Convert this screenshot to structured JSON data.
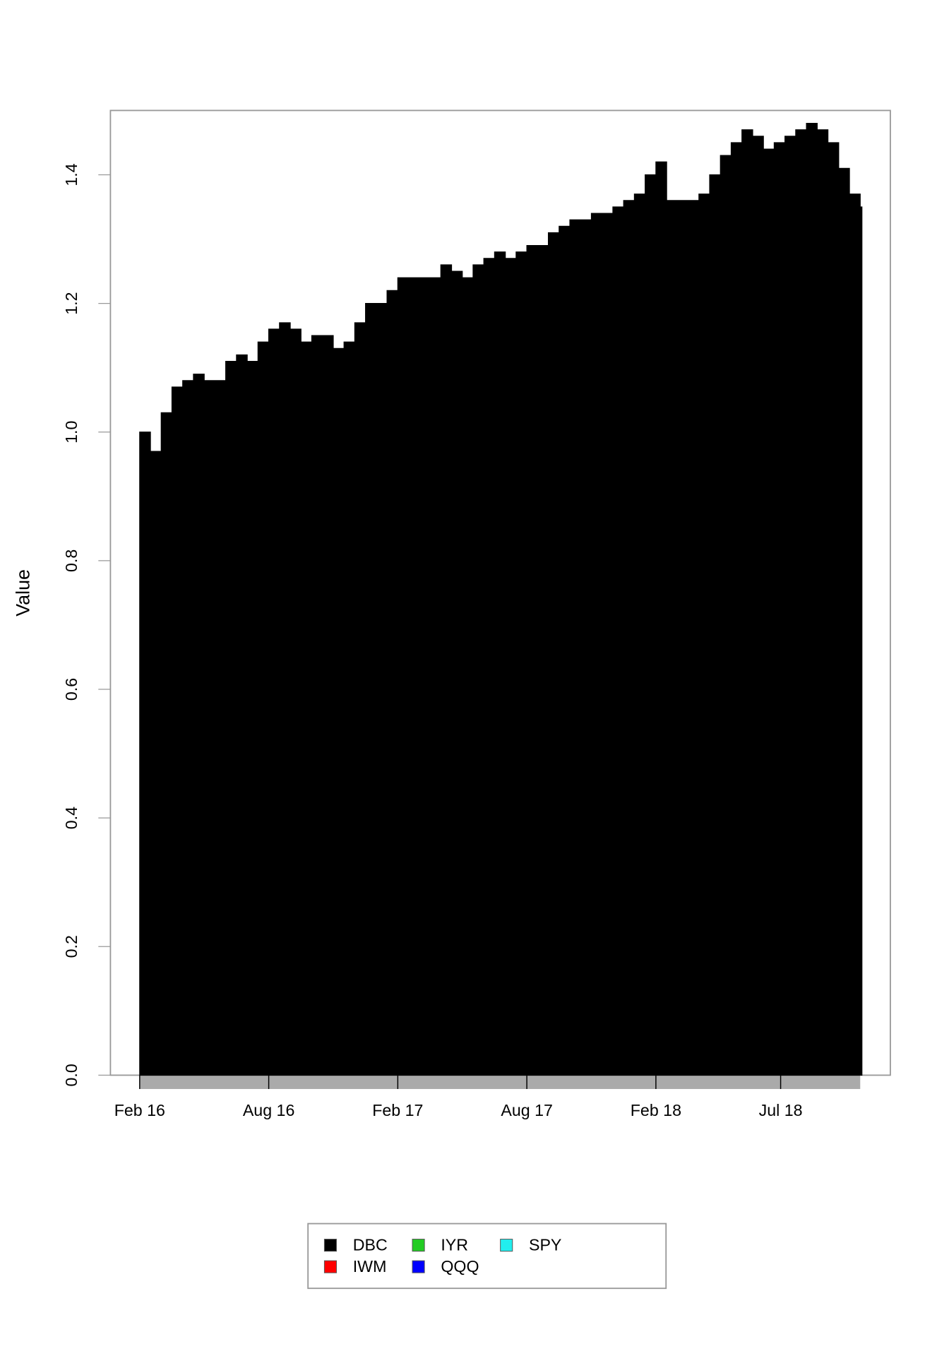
{
  "chart_data": {
    "type": "area",
    "y_label": "Value",
    "x": [
      0,
      0.5,
      1,
      1.5,
      2,
      2.5,
      3,
      3.5,
      4,
      4.5,
      5,
      5.5,
      6,
      6.5,
      7,
      7.5,
      8,
      8.5,
      9,
      9.5,
      10,
      10.5,
      11,
      11.5,
      12,
      12.5,
      13,
      13.5,
      14,
      14.5,
      15,
      15.5,
      16,
      16.5,
      17,
      17.5,
      18,
      18.5,
      19,
      19.5,
      20,
      20.5,
      21,
      21.5,
      22,
      22.5,
      23,
      23.5,
      24,
      24.5,
      25,
      25.5,
      26,
      26.5,
      27,
      27.5,
      28,
      28.5,
      29,
      29.5,
      30,
      30.5,
      31,
      31.5,
      32,
      32.5,
      33,
      33.5
    ],
    "series": [
      {
        "name": "DBC",
        "color": "#000000",
        "values": [
          1.0,
          0.97,
          1.03,
          1.07,
          1.08,
          1.09,
          1.08,
          1.08,
          1.11,
          1.12,
          1.11,
          1.14,
          1.16,
          1.17,
          1.16,
          1.14,
          1.15,
          1.15,
          1.13,
          1.14,
          1.17,
          1.2,
          1.2,
          1.22,
          1.24,
          1.24,
          1.24,
          1.24,
          1.26,
          1.25,
          1.24,
          1.26,
          1.27,
          1.28,
          1.27,
          1.28,
          1.29,
          1.29,
          1.31,
          1.32,
          1.33,
          1.33,
          1.34,
          1.34,
          1.35,
          1.36,
          1.37,
          1.4,
          1.42,
          1.36,
          1.36,
          1.36,
          1.37,
          1.4,
          1.43,
          1.45,
          1.47,
          1.46,
          1.44,
          1.45,
          1.46,
          1.47,
          1.48,
          1.47,
          1.45,
          1.41,
          1.37,
          1.35
        ]
      }
    ],
    "legend": [
      {
        "name": "DBC",
        "color": "#000000"
      },
      {
        "name": "IWM",
        "color": "#ff0000"
      },
      {
        "name": "IYR",
        "color": "#22cc22"
      },
      {
        "name": "QQQ",
        "color": "#0000ff"
      },
      {
        "name": "SPY",
        "color": "#22eeee"
      }
    ],
    "xlim": [
      -1.36,
      34.9
    ],
    "xticks": [
      {
        "value": 0,
        "label": "Feb 16"
      },
      {
        "value": 6,
        "label": "Aug 16"
      },
      {
        "value": 12,
        "label": "Feb 17"
      },
      {
        "value": 18,
        "label": "Aug 17"
      },
      {
        "value": 24,
        "label": "Feb 18"
      },
      {
        "value": 29.8,
        "label": "Jul 18"
      }
    ],
    "ylim": [
      0,
      1.5
    ],
    "yticks": [
      {
        "value": 0,
        "label": "0.0"
      },
      0.2,
      0.4,
      0.6,
      0.8,
      {
        "value": 1,
        "label": "1.0"
      },
      1.2,
      1.4
    ]
  }
}
